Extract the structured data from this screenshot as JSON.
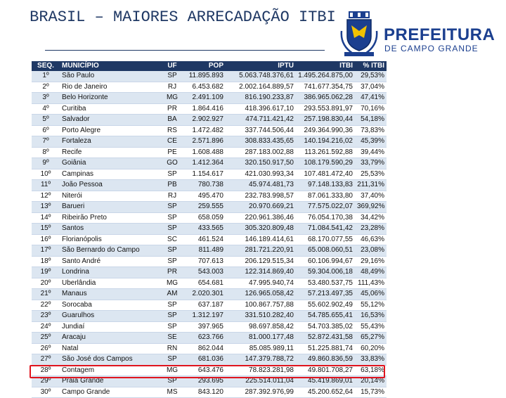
{
  "header": {
    "title": "BRASIL – MAIORES ARRECADAÇÃO ITBI",
    "brand": "PREFEITURA",
    "brand_sub": "DE CAMPO GRANDE"
  },
  "table": {
    "headers": [
      "SEQ.",
      "MUNICÍPIO",
      "UF",
      "POP",
      "IPTU",
      "ITBI",
      "% ITBI"
    ],
    "rows": [
      [
        "1º",
        "São Paulo",
        "SP",
        "11.895.893",
        "5.063.748.376,61",
        "1.495.264.875,00",
        "29,53%"
      ],
      [
        "2º",
        "Rio de Janeiro",
        "RJ",
        "6.453.682",
        "2.002.164.889,57",
        "741.677.354,75",
        "37,04%"
      ],
      [
        "3º",
        "Belo Horizonte",
        "MG",
        "2.491.109",
        "816.190.233,87",
        "386.965.062,28",
        "47,41%"
      ],
      [
        "4º",
        "Curitiba",
        "PR",
        "1.864.416",
        "418.396.617,10",
        "293.553.891,97",
        "70,16%"
      ],
      [
        "5º",
        "Salvador",
        "BA",
        "2.902.927",
        "474.711.421,42",
        "257.198.830,44",
        "54,18%"
      ],
      [
        "6º",
        "Porto Alegre",
        "RS",
        "1.472.482",
        "337.744.506,44",
        "249.364.990,36",
        "73,83%"
      ],
      [
        "7º",
        "Fortaleza",
        "CE",
        "2.571.896",
        "308.833.435,65",
        "140.194.216,02",
        "45,39%"
      ],
      [
        "8º",
        "Recife",
        "PE",
        "1.608.488",
        "287.183.002,88",
        "113.261.592,88",
        "39,44%"
      ],
      [
        "9º",
        "Goiânia",
        "GO",
        "1.412.364",
        "320.150.917,50",
        "108.179.590,29",
        "33,79%"
      ],
      [
        "10º",
        "Campinas",
        "SP",
        "1.154.617",
        "421.030.993,34",
        "107.481.472,40",
        "25,53%"
      ],
      [
        "11º",
        "João Pessoa",
        "PB",
        "780.738",
        "45.974.481,73",
        "97.148.133,83",
        "211,31%"
      ],
      [
        "12º",
        "Niterói",
        "RJ",
        "495.470",
        "232.783.998,57",
        "87.061.333,80",
        "37,40%"
      ],
      [
        "13º",
        "Barueri",
        "SP",
        "259.555",
        "20.970.669,21",
        "77.575.022,07",
        "369,92%"
      ],
      [
        "14º",
        "Ribeirão Preto",
        "SP",
        "658.059",
        "220.961.386,46",
        "76.054.170,38",
        "34,42%"
      ],
      [
        "15º",
        "Santos",
        "SP",
        "433.565",
        "305.320.809,48",
        "71.084.541,42",
        "23,28%"
      ],
      [
        "16º",
        "Florianópolis",
        "SC",
        "461.524",
        "146.189.414,61",
        "68.170.077,55",
        "46,63%"
      ],
      [
        "17º",
        "São Bernardo do Campo",
        "SP",
        "811.489",
        "281.721.220,91",
        "65.008.060,51",
        "23,08%"
      ],
      [
        "18º",
        "Santo André",
        "SP",
        "707.613",
        "206.129.515,34",
        "60.106.994,67",
        "29,16%"
      ],
      [
        "19º",
        "Londrina",
        "PR",
        "543.003",
        "122.314.869,40",
        "59.304.006,18",
        "48,49%"
      ],
      [
        "20º",
        "Uberlândia",
        "MG",
        "654.681",
        "47.995.940,74",
        "53.480.537,75",
        "111,43%"
      ],
      [
        "21º",
        "Manaus",
        "AM",
        "2.020.301",
        "126.965.058,42",
        "57.213.497,35",
        "45,06%"
      ],
      [
        "22º",
        "Sorocaba",
        "SP",
        "637.187",
        "100.867.757,88",
        "55.602.902,49",
        "55,12%"
      ],
      [
        "23º",
        "Guarulhos",
        "SP",
        "1.312.197",
        "331.510.282,40",
        "54.785.655,41",
        "16,53%"
      ],
      [
        "24º",
        "Jundiaí",
        "SP",
        "397.965",
        "98.697.858,42",
        "54.703.385,02",
        "55,43%"
      ],
      [
        "25º",
        "Aracaju",
        "SE",
        "623.766",
        "81.000.177,48",
        "52.872.431,58",
        "65,27%"
      ],
      [
        "26º",
        "Natal",
        "RN",
        "862.044",
        "85.085.989,11",
        "51.225.881,74",
        "60,20%"
      ],
      [
        "27º",
        "São José dos Campos",
        "SP",
        "681.036",
        "147.379.788,72",
        "49.860.836,59",
        "33,83%"
      ],
      [
        "28º",
        "Contagem",
        "MG",
        "643.476",
        "78.823.281,98",
        "49.801.708,27",
        "63,18%"
      ],
      [
        "29º",
        "Praia Grande",
        "SP",
        "293.695",
        "225.514.011,04",
        "45.419.869,01",
        "20,14%"
      ],
      [
        "30º",
        "Campo Grande",
        "MS",
        "843.120",
        "287.392.976,99",
        "45.200.652,64",
        "15,73%"
      ]
    ]
  }
}
